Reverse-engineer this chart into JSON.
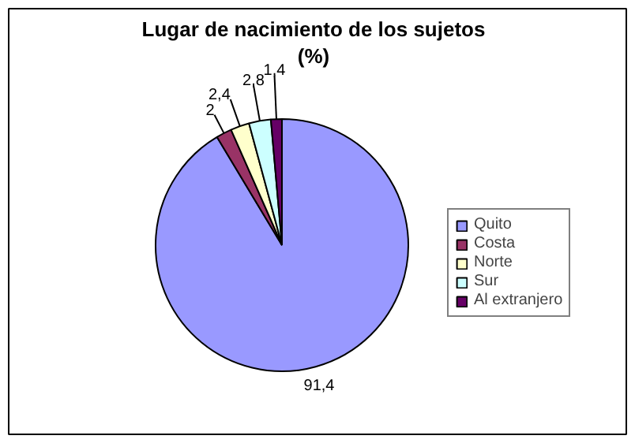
{
  "chart_data": {
    "type": "pie",
    "title": "Lugar de nacimiento de los sujetos",
    "subtitle": "(%)",
    "categories": [
      "Quito",
      "Costa",
      "Norte",
      "Sur",
      "Al extranjero"
    ],
    "values": [
      91.4,
      2,
      2.4,
      2.8,
      1.4
    ],
    "value_labels": [
      "91,4",
      "2",
      "2,4",
      "2,8",
      "1,4"
    ],
    "colors": [
      "#9999ff",
      "#993366",
      "#ffffcc",
      "#ccffff",
      "#660066"
    ],
    "legend": "right"
  }
}
